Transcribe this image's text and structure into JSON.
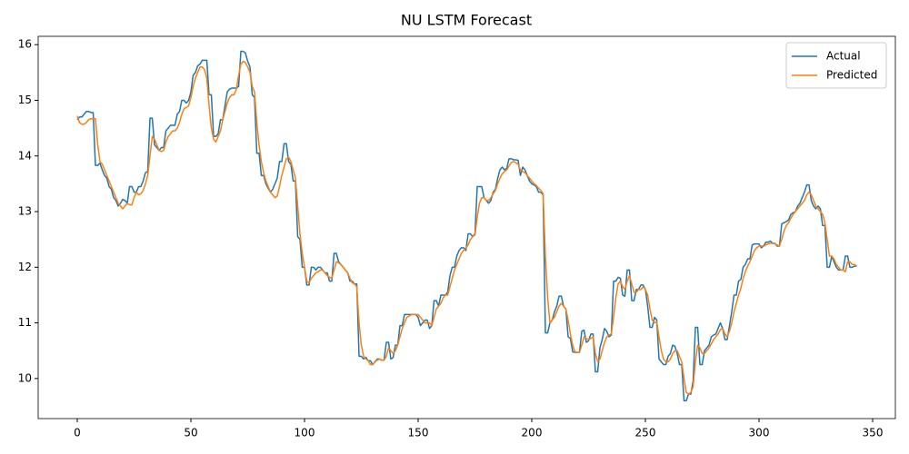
{
  "chart_data": {
    "type": "line",
    "title": "NU LSTM Forecast",
    "x": [
      0,
      1,
      2,
      3,
      4,
      5,
      6,
      7,
      8,
      9,
      10,
      11,
      12,
      13,
      14,
      15,
      16,
      17,
      18,
      19,
      20,
      21,
      22,
      23,
      24,
      25,
      26,
      27,
      28,
      29,
      30,
      31,
      32,
      33,
      34,
      35,
      36,
      37,
      38,
      39,
      40,
      41,
      42,
      43,
      44,
      45,
      46,
      47,
      48,
      49,
      50,
      51,
      52,
      53,
      54,
      55,
      56,
      57,
      58,
      59,
      60,
      61,
      62,
      63,
      64,
      65,
      66,
      67,
      68,
      69,
      70,
      71,
      72,
      73,
      74,
      75,
      76,
      77,
      78,
      79,
      80,
      81,
      82,
      83,
      84,
      85,
      86,
      87,
      88,
      89,
      90,
      91,
      92,
      93,
      94,
      95,
      96,
      97,
      98,
      99,
      100,
      101,
      102,
      103,
      104,
      105,
      106,
      107,
      108,
      109,
      110,
      111,
      112,
      113,
      114,
      115,
      116,
      117,
      118,
      119,
      120,
      121,
      122,
      123,
      124,
      125,
      126,
      127,
      128,
      129,
      130,
      131,
      132,
      133,
      134,
      135,
      136,
      137,
      138,
      139,
      140,
      141,
      142,
      143,
      144,
      145,
      146,
      147,
      148,
      149,
      150,
      151,
      152,
      153,
      154,
      155,
      156,
      157,
      158,
      159,
      160,
      161,
      162,
      163,
      164,
      165,
      166,
      167,
      168,
      169,
      170,
      171,
      172,
      173,
      174,
      175,
      176,
      177,
      178,
      179,
      180,
      181,
      182,
      183,
      184,
      185,
      186,
      187,
      188,
      189,
      190,
      191,
      192,
      193,
      194,
      195,
      196,
      197,
      198,
      199,
      200,
      201,
      202,
      203,
      204,
      205,
      206,
      207,
      208,
      209,
      210,
      211,
      212,
      213,
      214,
      215,
      216,
      217,
      218,
      219,
      220,
      221,
      222,
      223,
      224,
      225,
      226,
      227,
      228,
      229,
      230,
      231,
      232,
      233,
      234,
      235,
      236,
      237,
      238,
      239,
      240,
      241,
      242,
      243,
      244,
      245,
      246,
      247,
      248,
      249,
      250,
      251,
      252,
      253,
      254,
      255,
      256,
      257,
      258,
      259,
      260,
      261,
      262,
      263,
      264,
      265,
      266,
      267,
      268,
      269,
      270,
      271,
      272,
      273,
      274,
      275,
      276,
      277,
      278,
      279,
      280,
      281,
      282,
      283,
      284,
      285,
      286,
      287,
      288,
      289,
      290,
      291,
      292,
      293,
      294,
      295,
      296,
      297,
      298,
      299,
      300,
      301,
      302,
      303,
      304,
      305,
      306,
      307,
      308,
      309,
      310,
      311,
      312,
      313,
      314,
      315,
      316,
      317,
      318,
      319,
      320,
      321,
      322,
      323,
      324,
      325,
      326,
      327,
      328,
      329,
      330,
      331,
      332,
      333,
      334,
      335,
      336,
      337,
      338,
      339,
      340,
      341,
      342,
      343
    ],
    "series": [
      {
        "name": "Actual",
        "color": "#1f77b4",
        "values": [
          14.65,
          14.7,
          14.7,
          14.75,
          14.8,
          14.8,
          14.78,
          14.78,
          13.83,
          13.83,
          13.87,
          13.75,
          13.65,
          13.6,
          13.45,
          13.4,
          13.25,
          13.2,
          13.1,
          13.15,
          13.22,
          13.2,
          13.15,
          13.45,
          13.45,
          13.35,
          13.35,
          13.45,
          13.45,
          13.55,
          13.7,
          13.72,
          14.68,
          14.68,
          14.2,
          14.15,
          14.1,
          14.15,
          14.15,
          14.45,
          14.5,
          14.55,
          14.55,
          14.55,
          14.75,
          14.8,
          15.0,
          15.0,
          14.95,
          15.0,
          15.15,
          15.45,
          15.5,
          15.62,
          15.65,
          15.72,
          15.72,
          15.72,
          15.1,
          15.1,
          14.35,
          14.35,
          14.4,
          14.65,
          14.65,
          14.9,
          15.15,
          15.2,
          15.22,
          15.22,
          15.22,
          15.25,
          15.88,
          15.88,
          15.85,
          15.7,
          15.6,
          15.1,
          15.05,
          14.05,
          14.05,
          13.65,
          13.65,
          13.5,
          13.42,
          13.35,
          13.4,
          13.5,
          13.6,
          13.9,
          13.9,
          14.22,
          14.22,
          13.9,
          13.85,
          13.55,
          13.55,
          12.55,
          12.5,
          12.0,
          12.0,
          11.68,
          11.68,
          12.0,
          12.0,
          11.95,
          12.0,
          12.0,
          11.95,
          11.9,
          11.9,
          11.75,
          11.75,
          12.25,
          12.25,
          12.1,
          12.05,
          12.0,
          11.95,
          11.9,
          11.75,
          11.75,
          11.7,
          11.7,
          10.4,
          10.4,
          10.35,
          10.38,
          10.32,
          10.32,
          10.25,
          10.3,
          10.35,
          10.35,
          10.33,
          10.33,
          10.65,
          10.65,
          10.35,
          10.38,
          10.6,
          10.6,
          10.95,
          10.95,
          11.15,
          11.15,
          11.15,
          11.15,
          11.15,
          11.15,
          11.1,
          10.95,
          11.0,
          11.05,
          11.05,
          10.9,
          10.95,
          11.4,
          11.4,
          11.3,
          11.5,
          11.5,
          11.5,
          11.55,
          11.85,
          12.0,
          12.0,
          12.2,
          12.3,
          12.35,
          12.35,
          12.3,
          12.6,
          12.6,
          12.55,
          12.6,
          13.45,
          13.45,
          13.45,
          13.25,
          13.2,
          13.15,
          13.2,
          13.35,
          13.4,
          13.6,
          13.75,
          13.8,
          13.75,
          13.78,
          13.95,
          13.95,
          13.93,
          13.93,
          13.92,
          13.65,
          13.8,
          13.75,
          13.65,
          13.55,
          13.5,
          13.48,
          13.45,
          13.35,
          13.35,
          13.3,
          10.82,
          10.82,
          11.0,
          11.05,
          11.2,
          11.3,
          11.48,
          11.48,
          11.3,
          11.25,
          10.75,
          10.72,
          10.48,
          10.47,
          10.47,
          10.47,
          10.85,
          10.87,
          10.65,
          10.68,
          10.8,
          10.8,
          10.12,
          10.12,
          10.55,
          10.7,
          10.9,
          10.85,
          10.75,
          10.78,
          11.75,
          11.75,
          11.82,
          11.8,
          11.5,
          11.48,
          11.95,
          11.95,
          11.4,
          11.4,
          11.6,
          11.6,
          11.68,
          11.68,
          11.6,
          11.3,
          10.92,
          10.92,
          11.1,
          11.05,
          10.35,
          10.3,
          10.25,
          10.25,
          10.4,
          10.45,
          10.6,
          10.58,
          10.45,
          10.25,
          10.25,
          9.6,
          9.6,
          9.72,
          9.72,
          9.95,
          10.92,
          10.92,
          10.25,
          10.25,
          10.5,
          10.55,
          10.6,
          10.75,
          10.78,
          10.8,
          10.9,
          11.0,
          10.9,
          10.7,
          10.7,
          10.95,
          11.2,
          11.5,
          11.5,
          11.75,
          11.78,
          12.0,
          12.05,
          12.15,
          12.15,
          12.4,
          12.42,
          12.42,
          12.42,
          12.35,
          12.38,
          12.45,
          12.45,
          12.47,
          12.43,
          12.43,
          12.38,
          12.38,
          12.78,
          12.8,
          12.82,
          12.85,
          12.95,
          12.98,
          13.0,
          13.1,
          13.15,
          13.25,
          13.35,
          13.48,
          13.48,
          13.2,
          13.1,
          13.05,
          13.1,
          13.05,
          12.75,
          12.75,
          12.0,
          12.0,
          12.2,
          12.1,
          12.0,
          11.95,
          11.95,
          11.95,
          12.2,
          12.2,
          12.0,
          12.0,
          12.02,
          12.02
        ]
      },
      {
        "name": "Predicted",
        "color": "#ff7f0e",
        "values": [
          14.72,
          14.6,
          14.57,
          14.57,
          14.6,
          14.65,
          14.67,
          14.67,
          14.67,
          14.2,
          13.9,
          13.85,
          13.75,
          13.65,
          13.55,
          13.45,
          13.35,
          13.25,
          13.15,
          13.1,
          13.05,
          13.1,
          13.15,
          13.12,
          13.12,
          13.25,
          13.35,
          13.3,
          13.32,
          13.38,
          13.5,
          13.65,
          14.0,
          14.35,
          14.3,
          14.2,
          14.1,
          14.08,
          14.1,
          14.25,
          14.35,
          14.4,
          14.45,
          14.45,
          14.5,
          14.6,
          14.75,
          14.85,
          14.87,
          14.9,
          15.05,
          15.25,
          15.4,
          15.5,
          15.6,
          15.6,
          15.55,
          15.4,
          14.9,
          14.5,
          14.3,
          14.25,
          14.35,
          14.45,
          14.65,
          14.8,
          14.95,
          15.05,
          15.1,
          15.1,
          15.2,
          15.45,
          15.65,
          15.7,
          15.68,
          15.6,
          15.5,
          15.25,
          15.15,
          14.6,
          14.2,
          13.9,
          13.7,
          13.55,
          13.45,
          13.35,
          13.3,
          13.25,
          13.28,
          13.45,
          13.65,
          13.8,
          13.95,
          13.98,
          13.9,
          13.75,
          13.6,
          13.1,
          12.6,
          12.25,
          12.0,
          11.75,
          11.72,
          11.8,
          11.85,
          11.9,
          11.92,
          11.95,
          11.95,
          11.9,
          11.85,
          11.82,
          11.8,
          11.95,
          12.1,
          12.08,
          12.05,
          12.0,
          11.95,
          11.9,
          11.8,
          11.72,
          11.7,
          11.65,
          11.0,
          10.6,
          10.4,
          10.35,
          10.32,
          10.25,
          10.25,
          10.3,
          10.33,
          10.35,
          10.33,
          10.33,
          10.4,
          10.55,
          10.5,
          10.45,
          10.5,
          10.6,
          10.75,
          10.9,
          11.0,
          11.1,
          11.12,
          11.15,
          11.15,
          11.15,
          11.15,
          11.1,
          11.05,
          11.0,
          11.0,
          11.0,
          10.95,
          11.1,
          11.25,
          11.3,
          11.35,
          11.45,
          11.5,
          11.5,
          11.65,
          11.8,
          11.95,
          12.05,
          12.15,
          12.25,
          12.3,
          12.35,
          12.4,
          12.5,
          12.55,
          12.58,
          12.9,
          13.15,
          13.25,
          13.25,
          13.2,
          13.2,
          13.25,
          13.32,
          13.38,
          13.5,
          13.6,
          13.68,
          13.72,
          13.75,
          13.82,
          13.88,
          13.9,
          13.88,
          13.85,
          13.75,
          13.72,
          13.7,
          13.65,
          13.6,
          13.55,
          13.5,
          13.47,
          13.42,
          13.38,
          13.32,
          12.2,
          11.45,
          11.0,
          11.05,
          11.1,
          11.2,
          11.3,
          11.35,
          11.3,
          11.25,
          11.05,
          10.8,
          10.6,
          10.48,
          10.47,
          10.47,
          10.6,
          10.75,
          10.72,
          10.7,
          10.72,
          10.75,
          10.45,
          10.3,
          10.35,
          10.5,
          10.65,
          10.75,
          10.78,
          10.8,
          11.1,
          11.45,
          11.7,
          11.75,
          11.65,
          11.6,
          11.75,
          11.85,
          11.7,
          11.55,
          11.55,
          11.6,
          11.6,
          11.65,
          11.6,
          11.5,
          11.25,
          11.05,
          11.0,
          11.02,
          10.75,
          10.5,
          10.35,
          10.3,
          10.3,
          10.35,
          10.45,
          10.5,
          10.5,
          10.4,
          10.3,
          10.0,
          9.75,
          9.72,
          9.75,
          9.85,
          10.3,
          10.6,
          10.55,
          10.45,
          10.45,
          10.5,
          10.55,
          10.62,
          10.7,
          10.75,
          10.8,
          10.88,
          10.9,
          10.8,
          10.75,
          10.85,
          11.0,
          11.2,
          11.35,
          11.5,
          11.62,
          11.8,
          11.92,
          12.02,
          12.1,
          12.2,
          12.3,
          12.35,
          12.38,
          12.38,
          12.38,
          12.4,
          12.42,
          12.43,
          12.43,
          12.42,
          12.4,
          12.38,
          12.5,
          12.65,
          12.75,
          12.8,
          12.88,
          12.95,
          13.0,
          13.05,
          13.1,
          13.15,
          13.2,
          13.3,
          13.35,
          13.3,
          13.2,
          13.1,
          13.05,
          13.0,
          12.95,
          12.8,
          12.5,
          12.2,
          12.2,
          12.15,
          12.05,
          12.0,
          11.95,
          11.95,
          11.92,
          12.1,
          12.1,
          12.05,
          12.05,
          12.02
        ]
      }
    ],
    "xlim": [
      -17.2,
      360
    ],
    "ylim": [
      9.28,
      16.15
    ],
    "xticks": [
      0,
      50,
      100,
      150,
      200,
      250,
      300,
      350
    ],
    "yticks": [
      10,
      11,
      12,
      13,
      14,
      15,
      16
    ],
    "grid": false,
    "legend": "upper right"
  }
}
